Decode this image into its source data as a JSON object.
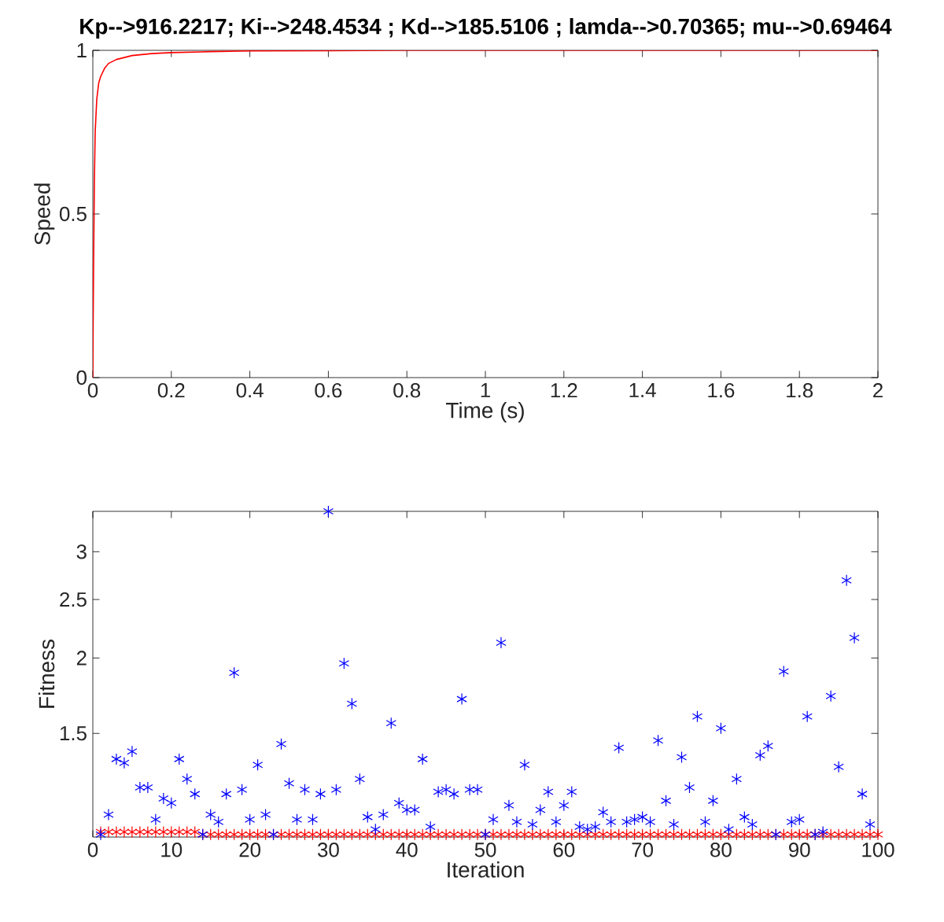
{
  "chart_data": [
    {
      "type": "line",
      "title": "Kp-->916.2217; Ki-->248.4534 ; Kd-->185.5106 ; lamda-->0.70365; mu-->0.69464",
      "xlabel": "Time (s)",
      "ylabel": "Speed",
      "x": [
        0,
        0.001,
        0.002,
        0.004,
        0.006,
        0.01,
        0.015,
        0.02,
        0.03,
        0.04,
        0.06,
        0.1,
        0.15,
        0.2,
        0.3,
        0.4,
        0.6,
        0.8,
        1.2,
        2
      ],
      "values": [
        0,
        0.2,
        0.35,
        0.6,
        0.75,
        0.85,
        0.9,
        0.92,
        0.945,
        0.96,
        0.972,
        0.984,
        0.99,
        0.993,
        0.996,
        0.998,
        0.999,
        1,
        1,
        1
      ],
      "color": "#ff0000",
      "xlim": [
        0,
        2
      ],
      "xticks": [
        0,
        0.2,
        0.4,
        0.6,
        0.8,
        1,
        1.2,
        1.4,
        1.6,
        1.8,
        2
      ],
      "ylim": [
        0,
        1
      ],
      "yticks": [
        0,
        0.5,
        1
      ]
    },
    {
      "type": "scatter",
      "xlabel": "Iteration",
      "ylabel": "Fitness",
      "marker": "cross",
      "log": "y",
      "xlim": [
        0,
        100
      ],
      "xticks": [
        0,
        10,
        20,
        30,
        40,
        50,
        60,
        70,
        80,
        90,
        100
      ],
      "ylim": [
        1.01,
        3.5
      ],
      "yticks": [
        1.5,
        2,
        2.5,
        3
      ],
      "series": [
        {
          "color": "#ff0000",
          "x": [
            1,
            2,
            3,
            4,
            5,
            6,
            7,
            8,
            9,
            10,
            11,
            12,
            13,
            14,
            15,
            16,
            17,
            18,
            19,
            20,
            21,
            22,
            23,
            24,
            25,
            26,
            27,
            28,
            29,
            30,
            31,
            32,
            33,
            34,
            35,
            36,
            37,
            38,
            39,
            40,
            41,
            42,
            43,
            44,
            45,
            46,
            47,
            48,
            49,
            50,
            51,
            52,
            53,
            54,
            55,
            56,
            57,
            58,
            59,
            60,
            61,
            62,
            63,
            64,
            65,
            66,
            67,
            68,
            69,
            70,
            71,
            72,
            73,
            74,
            75,
            76,
            77,
            78,
            79,
            80,
            81,
            82,
            83,
            84,
            85,
            86,
            87,
            88,
            89,
            90,
            91,
            92,
            93,
            94,
            95,
            96,
            97,
            98,
            99,
            100
          ],
          "values": [
            1.03,
            1.03,
            1.03,
            1.03,
            1.03,
            1.03,
            1.03,
            1.03,
            1.03,
            1.03,
            1.03,
            1.03,
            1.03,
            1.02,
            1.02,
            1.02,
            1.02,
            1.02,
            1.02,
            1.02,
            1.02,
            1.02,
            1.02,
            1.02,
            1.02,
            1.02,
            1.02,
            1.02,
            1.02,
            1.02,
            1.02,
            1.02,
            1.02,
            1.02,
            1.02,
            1.02,
            1.02,
            1.02,
            1.02,
            1.02,
            1.02,
            1.02,
            1.02,
            1.02,
            1.02,
            1.02,
            1.02,
            1.02,
            1.02,
            1.02,
            1.02,
            1.02,
            1.02,
            1.02,
            1.02,
            1.02,
            1.02,
            1.02,
            1.02,
            1.02,
            1.02,
            1.02,
            1.02,
            1.02,
            1.02,
            1.02,
            1.02,
            1.02,
            1.02,
            1.02,
            1.02,
            1.02,
            1.02,
            1.02,
            1.02,
            1.02,
            1.02,
            1.02,
            1.02,
            1.02,
            1.02,
            1.02,
            1.02,
            1.02,
            1.02,
            1.02,
            1.02,
            1.02,
            1.02,
            1.02,
            1.02,
            1.02,
            1.02,
            1.02,
            1.02,
            1.02,
            1.02,
            1.02,
            1.02,
            1.02
          ]
        },
        {
          "color": "#0000ff",
          "x": [
            1,
            2,
            3,
            4,
            5,
            6,
            7,
            8,
            9,
            10,
            11,
            12,
            13,
            14,
            15,
            16,
            17,
            18,
            19,
            20,
            21,
            22,
            23,
            24,
            25,
            26,
            27,
            28,
            29,
            30,
            31,
            32,
            33,
            34,
            35,
            36,
            37,
            38,
            39,
            40,
            41,
            42,
            43,
            44,
            45,
            46,
            47,
            48,
            49,
            50,
            51,
            52,
            53,
            54,
            55,
            56,
            57,
            58,
            59,
            60,
            61,
            62,
            63,
            64,
            65,
            66,
            67,
            68,
            69,
            70,
            71,
            72,
            73,
            74,
            75,
            76,
            77,
            78,
            79,
            80,
            81,
            82,
            83,
            84,
            85,
            86,
            87,
            88,
            89,
            90,
            91,
            92,
            93,
            94,
            95,
            96,
            97,
            98,
            99
          ],
          "values": [
            1.02,
            1.1,
            1.36,
            1.34,
            1.4,
            1.22,
            1.22,
            1.08,
            1.17,
            1.15,
            1.36,
            1.26,
            1.19,
            1.02,
            1.1,
            1.07,
            1.19,
            1.89,
            1.21,
            1.08,
            1.33,
            1.1,
            1.02,
            1.44,
            1.24,
            1.08,
            1.21,
            1.08,
            1.19,
            3.5,
            1.21,
            1.96,
            1.68,
            1.26,
            1.09,
            1.04,
            1.1,
            1.56,
            1.15,
            1.12,
            1.12,
            1.36,
            1.05,
            1.2,
            1.21,
            1.19,
            1.71,
            1.21,
            1.21,
            1.02,
            1.08,
            2.12,
            1.14,
            1.07,
            1.33,
            1.06,
            1.12,
            1.2,
            1.07,
            1.14,
            1.2,
            1.05,
            1.04,
            1.05,
            1.11,
            1.07,
            1.42,
            1.07,
            1.08,
            1.09,
            1.07,
            1.46,
            1.16,
            1.06,
            1.37,
            1.22,
            1.6,
            1.07,
            1.16,
            1.53,
            1.04,
            1.26,
            1.09,
            1.06,
            1.38,
            1.43,
            1.02,
            1.9,
            1.07,
            1.08,
            1.6,
            1.02,
            1.03,
            1.73,
            1.32,
            2.69,
            2.16,
            1.19,
            1.06
          ]
        }
      ]
    }
  ]
}
